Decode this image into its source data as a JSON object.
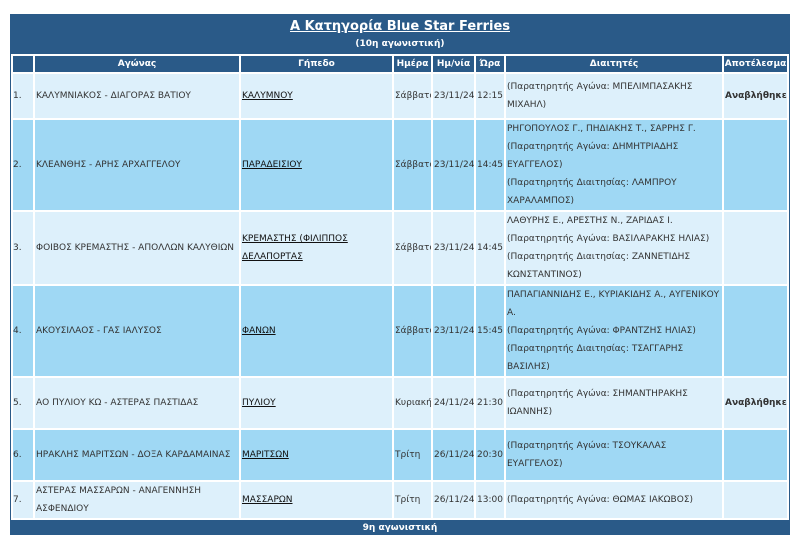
{
  "header": {
    "title": "Α Κατηγορία Blue Star Ferries",
    "subtitle": "(10η αγωνιστική)"
  },
  "columns": {
    "blank": "",
    "match": "Αγώνας",
    "venue": "Γήπεδο",
    "day": "Ημέρα",
    "date": "Ημ/νία",
    "time": "Ώρα",
    "referees": "Διαιτητές",
    "result": "Αποτέλεσμα"
  },
  "rows": [
    {
      "num": "1.",
      "match": "ΚΑΛΥΜΝΙΑΚΟΣ - ΔΙΑΓΟΡΑΣ ΒΑΤΙΟΥ",
      "venue": "ΚΑΛΥΜΝΟΥ",
      "day": "Σάββατο",
      "date": "23/11/24",
      "time": "12:15",
      "referees": [
        "(Παρατηρητής Αγώνα: ΜΠΕΛΙΜΠΑΣΑΚΗΣ ΜΙΧΑΗΛ)"
      ],
      "result": "Αναβλήθηκε"
    },
    {
      "num": "2.",
      "match": "ΚΛΕΑΝΘΗΣ - ΑΡΗΣ ΑΡΧΑΓΓΕΛΟΥ",
      "venue": "ΠΑΡΑΔΕΙΣΙΟΥ",
      "day": "Σάββατο",
      "date": "23/11/24",
      "time": "14:45",
      "referees": [
        "ΡΗΓΟΠΟΥΛΟΣ Γ., ΠΗΔΙΑΚΗΣ Τ., ΣΑΡΡΗΣ Γ.",
        "(Παρατηρητής Αγώνα: ΔΗΜΗΤΡΙΑΔΗΣ ΕΥΑΓΓΕΛΟΣ)",
        "(Παρατηρητής Διαιτησίας: ΛΑΜΠΡΟΥ ΧΑΡΑΛΑΜΠΟΣ)"
      ],
      "result": ""
    },
    {
      "num": "3.",
      "match": "ΦΟΙΒΟΣ ΚΡΕΜΑΣΤΗΣ - ΑΠΟΛΛΩΝ ΚΑΛΥΘΙΩΝ",
      "venue": "ΚΡΕΜΑΣΤΗΣ (ΦΙΛΙΠΠΟΣ ΔΕΛΑΠΟΡΤΑΣ",
      "day": "Σάββατο",
      "date": "23/11/24",
      "time": "14:45",
      "referees": [
        "ΛΑΘΥΡΗΣ Ε., ΑΡΕΣΤΗΣ Ν., ΖΑΡΙΔΑΣ Ι.",
        "(Παρατηρητής Αγώνα: ΒΑΣΙΛΑΡΑΚΗΣ ΗΛΙΑΣ)",
        "(Παρατηρητής Διαιτησίας: ΖΑΝΝΕΤΙΔΗΣ ΚΩΝΣΤΑΝΤΙΝΟΣ)"
      ],
      "result": ""
    },
    {
      "num": "4.",
      "match": "ΑΚΟΥΣΙΛΑΟΣ - ΓΑΣ ΙΑΛΥΣΟΣ",
      "venue": "ΦΑΝΩΝ",
      "day": "Σάββατο",
      "date": "23/11/24",
      "time": "15:45",
      "referees": [
        "ΠΑΠΑΓΙΑΝΝΙΔΗΣ Ε., ΚΥΡΙΑΚΙΔΗΣ Α., ΑΥΓΕΝΙΚΟΥ Α.",
        "(Παρατηρητής Αγώνα: ΦΡΑΝΤΖΗΣ ΗΛΙΑΣ)",
        "(Παρατηρητής Διαιτησίας: ΤΣΑΓΓΑΡΗΣ ΒΑΣΙΛΗΣ)"
      ],
      "result": ""
    },
    {
      "num": "5.",
      "match": "ΑΟ ΠΥΛΙΟΥ ΚΩ - ΑΣΤΕΡΑΣ ΠΑΣΤΙΔΑΣ",
      "venue": "ΠΥΛΙΟΥ",
      "day": "Κυριακή",
      "date": "24/11/24",
      "time": "21:30",
      "referees": [
        "(Παρατηρητής Αγώνα: ΣΗΜΑΝΤΗΡΑΚΗΣ ΙΩΑΝΝΗΣ)"
      ],
      "result": "Αναβλήθηκε"
    },
    {
      "num": "6.",
      "match": "ΗΡΑΚΛΗΣ ΜΑΡΙΤΣΩΝ - ΔΟΞΑ ΚΑΡΔΑΜΑΙΝΑΣ",
      "venue": "ΜΑΡΙΤΣΩΝ",
      "day": "Τρίτη",
      "date": "26/11/24",
      "time": "20:30",
      "referees": [
        "(Παρατηρητής Αγώνα: ΤΣΟΥΚΑΛΑΣ ΕΥΑΓΓΕΛΟΣ)"
      ],
      "result": ""
    },
    {
      "num": "7.",
      "match": "ΑΣΤΕΡΑΣ ΜΑΣΣΑΡΩΝ - ΑΝΑΓΕΝΝΗΣΗ ΑΣΦΕΝΔΙΟΥ",
      "venue": "ΜΑΣΣΑΡΩΝ",
      "day": "Τρίτη",
      "date": "26/11/24",
      "time": "13:00",
      "referees": [
        "(Παρατηρητής Αγώνα: ΘΩΜΑΣ ΙΑΚΩΒΟΣ)"
      ],
      "result": ""
    }
  ],
  "footer": {
    "next_round": "9η αγωνιστική"
  }
}
